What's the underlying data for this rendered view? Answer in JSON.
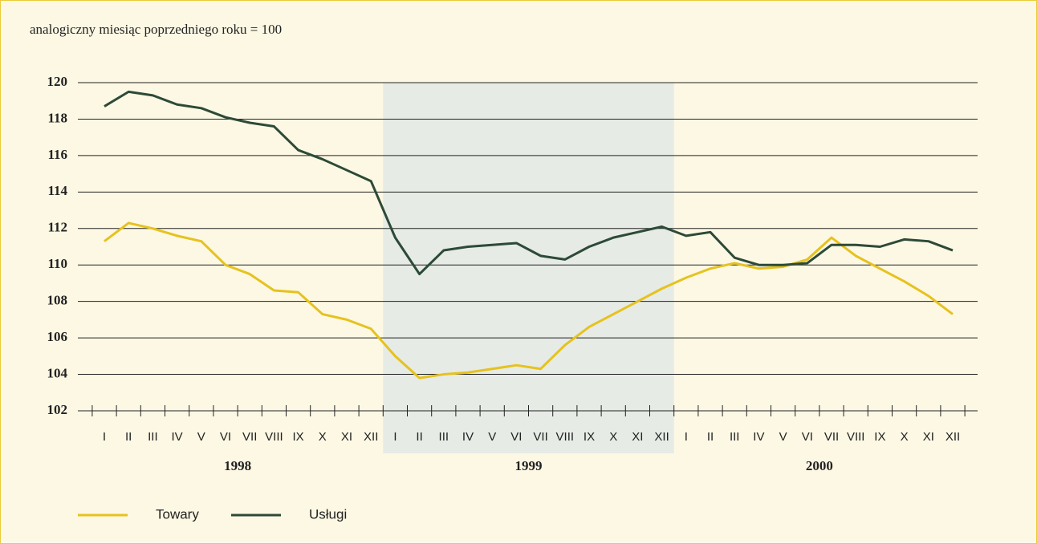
{
  "chart_data": {
    "type": "line",
    "title": "analogiczny miesiąc poprzedniego roku = 100",
    "categories": [
      "I",
      "II",
      "III",
      "IV",
      "V",
      "VI",
      "VII",
      "VIII",
      "IX",
      "X",
      "XI",
      "XII",
      "I",
      "II",
      "III",
      "IV",
      "V",
      "VI",
      "VII",
      "VIII",
      "IX",
      "X",
      "XI",
      "XII",
      "I",
      "II",
      "III",
      "IV",
      "V",
      "VI",
      "VII",
      "VIII",
      "IX",
      "X",
      "XI",
      "XII"
    ],
    "years": [
      "1998",
      "1999",
      "2000"
    ],
    "series": [
      {
        "name": "Towary",
        "color": "#e6c21e",
        "values": [
          111.3,
          112.3,
          112.0,
          111.6,
          111.3,
          110.0,
          109.5,
          108.6,
          108.5,
          107.3,
          107.0,
          106.5,
          105.0,
          103.8,
          104.0,
          104.1,
          104.3,
          104.5,
          104.3,
          105.6,
          106.6,
          107.3,
          108.0,
          108.7,
          109.3,
          109.8,
          110.1,
          109.8,
          109.9,
          110.3,
          111.5,
          110.5,
          109.8,
          109.1,
          108.3,
          107.3
        ]
      },
      {
        "name": "Usługi",
        "color": "#2d4a37",
        "values": [
          118.7,
          119.5,
          119.3,
          118.8,
          118.6,
          118.1,
          117.8,
          117.6,
          116.3,
          115.8,
          115.2,
          114.6,
          111.5,
          109.5,
          110.8,
          111.0,
          111.1,
          111.2,
          110.5,
          110.3,
          111.0,
          111.5,
          111.8,
          112.1,
          111.6,
          111.8,
          110.4,
          110.0,
          110.0,
          110.1,
          111.1,
          111.1,
          111.0,
          111.4,
          111.3,
          110.8
        ]
      }
    ],
    "ylim": [
      102,
      120
    ],
    "yticks": [
      102,
      104,
      106,
      108,
      110,
      112,
      114,
      116,
      118,
      120
    ],
    "grid": true
  }
}
